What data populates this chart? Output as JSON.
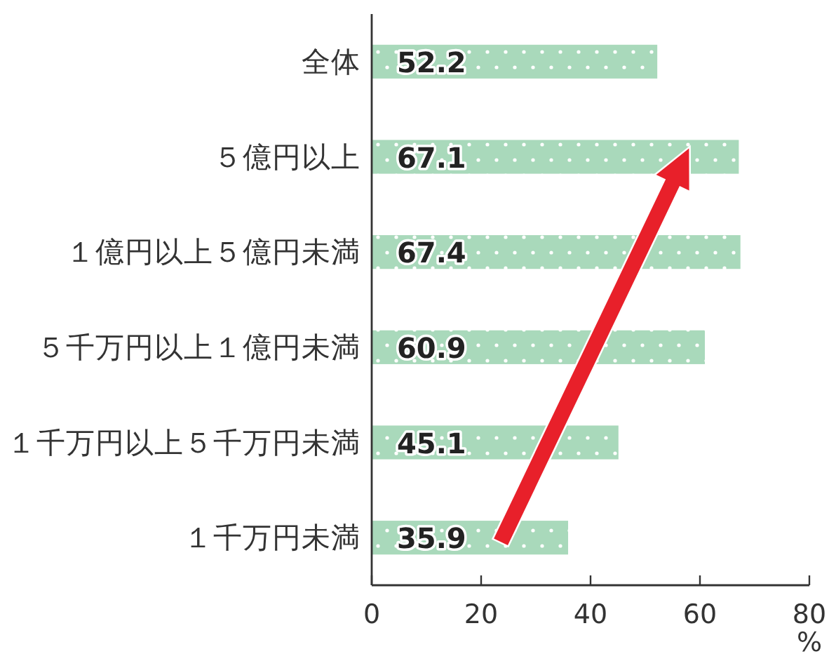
{
  "chart_data": {
    "type": "bar",
    "orientation": "horizontal",
    "categories": [
      "全体",
      "５億円以上",
      "１億円以上５億円未満",
      "５千万円以上１億円未満",
      "１千万円以上５千万円未満",
      "１千万円未満"
    ],
    "values": [
      52.2,
      67.1,
      67.4,
      60.9,
      45.1,
      35.9
    ],
    "color": "#a9d9bb",
    "xlim": [
      0,
      80
    ],
    "xticks": [
      0,
      20,
      40,
      60,
      80
    ],
    "xlabel": "%",
    "data_labels": true
  }
}
